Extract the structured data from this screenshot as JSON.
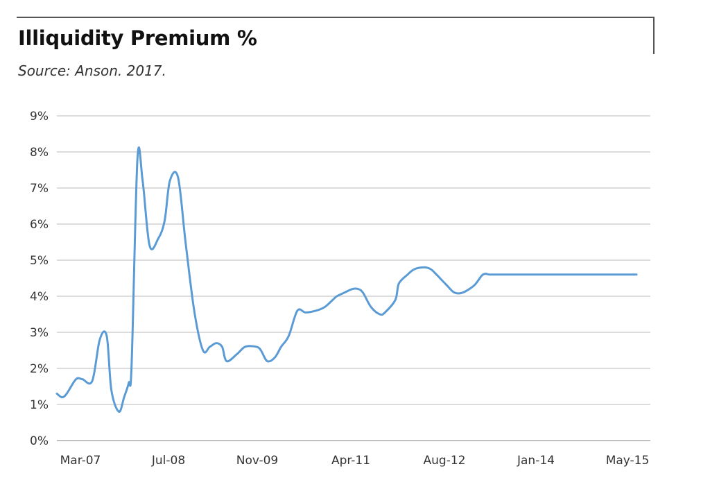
{
  "header": {
    "title": "Illiquidity Premium %",
    "subtitle": "Source: Anson. 2017."
  },
  "chart_data": {
    "type": "line",
    "title": "Illiquidity Premium %",
    "subtitle": "Source: Anson. 2017.",
    "xlabel": "",
    "ylabel": "",
    "ylim": [
      0,
      9
    ],
    "grid": true,
    "line_color": "#5b9bd5",
    "grid_color": "#c8c8c8",
    "yticks": [
      "0%",
      "1%",
      "2%",
      "3%",
      "4%",
      "5%",
      "6%",
      "7%",
      "8%",
      "9%"
    ],
    "xticks": [
      "Mar-07",
      "Jul-08",
      "Nov-09",
      "Apr-11",
      "Aug-12",
      "Jan-14",
      "May-15"
    ],
    "series": [
      {
        "x": [
          0,
          0.9,
          1.7,
          3.3,
          4.4,
          6.1,
          7.4,
          8.6,
          9.4,
          10.7,
          11.6,
          12.4,
          12.9,
          13.9,
          14.8,
          16.0,
          17.5,
          18.6,
          19.5,
          20.9,
          22.2,
          23.7,
          25.2,
          26.4,
          27.5,
          28.5,
          29.3,
          31.1,
          32.5,
          34.4,
          35.2,
          36.3,
          37.6,
          38.7,
          40.0,
          41.5,
          42.9,
          44.7,
          46.2,
          47.6,
          48.3,
          49.6,
          51.0,
          52.0,
          52.8,
          54.2,
          55.7,
          56.6,
          58.4,
          59.0,
          60.5,
          61.7,
          63.4,
          64.5,
          65.5,
          67.3,
          68.6,
          70.0,
          72.0,
          73.5,
          74.7,
          75.5,
          77.1,
          78.4,
          79.3,
          80.9,
          82.3,
          83.8,
          85.0,
          86.6,
          88.0,
          89.2,
          90.6,
          91.5,
          93.0,
          94.0,
          95.0,
          96.8,
          98.0,
          99.0,
          100.0
        ],
        "values": [
          1.3,
          1.2,
          1.3,
          1.7,
          1.7,
          1.65,
          2.8,
          2.9,
          1.4,
          0.8,
          1.2,
          1.6,
          2.1,
          7.8,
          7.2,
          5.4,
          5.6,
          6.1,
          7.2,
          7.3,
          5.5,
          3.6,
          2.5,
          2.6,
          2.7,
          2.6,
          2.2,
          2.4,
          2.6,
          2.6,
          2.5,
          2.2,
          2.3,
          2.6,
          2.9,
          3.6,
          3.55,
          3.6,
          3.7,
          3.9,
          4.0,
          4.1,
          4.2,
          4.2,
          4.1,
          3.7,
          3.5,
          3.55,
          3.9,
          4.35,
          4.6,
          4.75,
          4.8,
          4.75,
          4.6,
          4.3,
          4.1,
          4.1,
          4.3,
          4.6,
          4.6,
          4.6,
          4.6,
          4.6,
          4.6,
          4.6,
          4.6,
          4.6,
          4.6,
          4.6,
          4.6,
          4.6,
          4.6,
          4.6,
          4.6,
          4.6,
          4.6,
          4.6,
          4.6,
          4.6,
          4.6
        ]
      }
    ]
  }
}
